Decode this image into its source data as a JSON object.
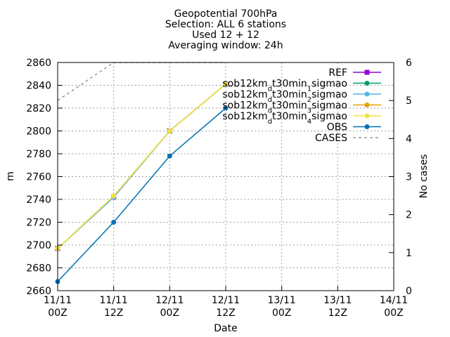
{
  "chart_data": {
    "type": "line",
    "title_lines": [
      "Geopotential 700hPa",
      "Selection: ALL      6 stations",
      "Used 12 + 12",
      "Averaging window: 24h"
    ],
    "xlabel": "Date",
    "ylabel": "m",
    "y2label": "No cases",
    "ylim": [
      2660,
      2860
    ],
    "y2lim": [
      0,
      6
    ],
    "yticks": [
      "2660",
      "2680",
      "2700",
      "2720",
      "2740",
      "2760",
      "2780",
      "2800",
      "2820",
      "2840",
      "2860"
    ],
    "y2ticks": [
      "0",
      "1",
      "2",
      "3",
      "4",
      "5",
      "6"
    ],
    "xticks": [
      {
        "line1": "11/11",
        "line2": "00Z"
      },
      {
        "line1": "11/11",
        "line2": "12Z"
      },
      {
        "line1": "12/11",
        "line2": "00Z"
      },
      {
        "line1": "12/11",
        "line2": "12Z"
      },
      {
        "line1": "13/11",
        "line2": "00Z"
      },
      {
        "line1": "13/11",
        "line2": "12Z"
      },
      {
        "line1": "14/11",
        "line2": "00Z"
      }
    ],
    "grid": true,
    "legend_position": "top-right",
    "series": [
      {
        "name": "REF",
        "name_parts": [
          [
            "REF",
            ""
          ]
        ],
        "color": "#9400d3",
        "marker": "square",
        "axis": "y",
        "x": [
          0,
          1,
          2,
          3
        ],
        "values": [
          2697,
          2742,
          2800,
          2841
        ]
      },
      {
        "name": "sob12km_dt30min_1sigmao",
        "name_parts": [
          [
            "sob12km",
            ""
          ],
          [
            "d",
            "sub"
          ],
          [
            "t30min",
            ""
          ],
          [
            "1",
            "sub"
          ],
          [
            "sigmao",
            ""
          ]
        ],
        "color": "#009e73",
        "marker": "circle",
        "axis": "y",
        "x": [
          0,
          1,
          2,
          3
        ],
        "values": [
          2697,
          2742,
          2800,
          2841
        ]
      },
      {
        "name": "sob12km_dt30min_2sigmao",
        "name_parts": [
          [
            "sob12km",
            ""
          ],
          [
            "d",
            "sub"
          ],
          [
            "t30min",
            ""
          ],
          [
            "2",
            "sub"
          ],
          [
            "sigmao",
            ""
          ]
        ],
        "color": "#56b4e9",
        "marker": "circle",
        "axis": "y",
        "x": [
          0,
          1,
          2,
          3
        ],
        "values": [
          2697,
          2742,
          2800,
          2841
        ]
      },
      {
        "name": "sob12km_dt30min_3sigmao",
        "name_parts": [
          [
            "sob12km",
            ""
          ],
          [
            "d",
            "sub"
          ],
          [
            "t30min",
            ""
          ],
          [
            "3",
            "sub"
          ],
          [
            "sigmao",
            ""
          ]
        ],
        "color": "#e69f00",
        "marker": "circle",
        "axis": "y",
        "x": [
          0,
          1,
          2,
          3
        ],
        "values": [
          2697,
          2743,
          2800,
          2841
        ]
      },
      {
        "name": "sob12km_dt30min_4sigmao",
        "name_parts": [
          [
            "sob12km",
            ""
          ],
          [
            "d",
            "sub"
          ],
          [
            "t30min",
            ""
          ],
          [
            "4",
            "sub"
          ],
          [
            "sigmao",
            ""
          ]
        ],
        "color": "#f0e442",
        "marker": "circle",
        "axis": "y",
        "x": [
          0,
          1,
          2,
          3
        ],
        "values": [
          2697,
          2743,
          2800,
          2841
        ]
      },
      {
        "name": "OBS",
        "name_parts": [
          [
            "OBS",
            ""
          ]
        ],
        "color": "#0072b2",
        "marker": "circle",
        "axis": "y",
        "x": [
          0,
          1,
          2,
          3
        ],
        "values": [
          2668,
          2720,
          2778,
          2820
        ]
      },
      {
        "name": "CASES",
        "name_parts": [
          [
            "CASES",
            ""
          ]
        ],
        "color": "#999999",
        "marker": "none",
        "dash": true,
        "axis": "y2",
        "x": [
          0,
          1,
          2,
          3
        ],
        "values": [
          5,
          6,
          6,
          6
        ]
      }
    ]
  }
}
